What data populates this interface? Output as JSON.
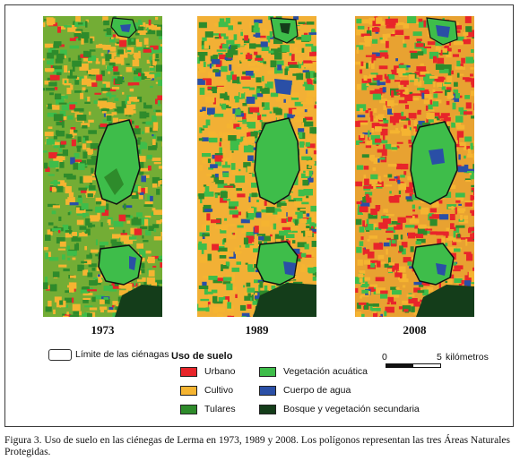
{
  "years": [
    "1973",
    "1989",
    "2008"
  ],
  "boundary_label": "Límite de las ciénagas",
  "legend": {
    "title": "Uso de suelo",
    "items": [
      {
        "label": "Urbano",
        "color": "#e8252a"
      },
      {
        "label": "Cultivo",
        "color": "#f5b431"
      },
      {
        "label": "Tulares",
        "color": "#2e8b2b"
      },
      {
        "label": "Vegetación acuática",
        "color": "#3ebd4a"
      },
      {
        "label": "Cuerpo de agua",
        "color": "#2a4fa6"
      },
      {
        "label": "Bosque y vegetación secundaria",
        "color": "#143d1a"
      }
    ]
  },
  "scale": {
    "min_label": "0",
    "max_label": "5",
    "unit": "kilómetros"
  },
  "caption": "Figura 3. Uso de suelo en las ciénegas de Lerma en 1973, 1989 y 2008. Los polígonos representan las tres Áreas Naturales Protegidas."
}
